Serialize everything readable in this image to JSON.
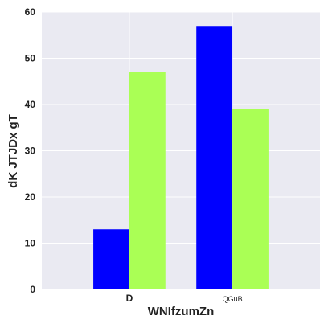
{
  "chart_data": {
    "type": "bar",
    "title": "",
    "xlabel": "WNIfzumZn",
    "ylabel": "dK  JTJDx gT",
    "categories": [
      "D",
      "QGuB"
    ],
    "series": [
      {
        "values": [
          13,
          57
        ],
        "color": "#0000ff"
      },
      {
        "values": [
          47,
          39
        ],
        "color": "#aaff55"
      }
    ],
    "ylim": [
      0,
      60
    ],
    "yticks": [
      0,
      10,
      20,
      30,
      40,
      50,
      60
    ],
    "grid": true,
    "background": "#eaeaf2",
    "legend": "none"
  }
}
